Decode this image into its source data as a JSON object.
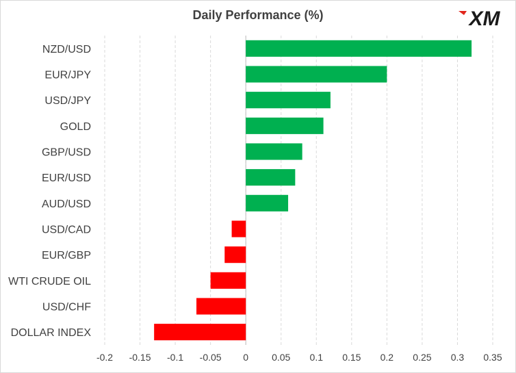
{
  "title": "Daily Performance (%)",
  "logo_text": "XM",
  "colors": {
    "positive": "#00b050",
    "negative": "#ff0000",
    "grid": "#d9d9d9",
    "text": "#404040"
  },
  "chart_data": {
    "type": "bar",
    "orientation": "horizontal",
    "title": "Daily Performance (%)",
    "categories": [
      "NZD/USD",
      "EUR/JPY",
      "USD/JPY",
      "GOLD",
      "GBP/USD",
      "EUR/USD",
      "AUD/USD",
      "USD/CAD",
      "EUR/GBP",
      "WTI CRUDE OIL",
      "USD/CHF",
      "DOLLAR INDEX"
    ],
    "values": [
      0.32,
      0.2,
      0.12,
      0.11,
      0.08,
      0.07,
      0.06,
      -0.02,
      -0.03,
      -0.05,
      -0.07,
      -0.13
    ],
    "xlim": [
      -0.2,
      0.35
    ],
    "xticks": [
      "-0.2",
      "-0.15",
      "-0.1",
      "-0.05",
      "0",
      "0.05",
      "0.1",
      "0.15",
      "0.2",
      "0.25",
      "0.3",
      "0.35"
    ],
    "grid": "vertical dashed",
    "legend": "none"
  }
}
